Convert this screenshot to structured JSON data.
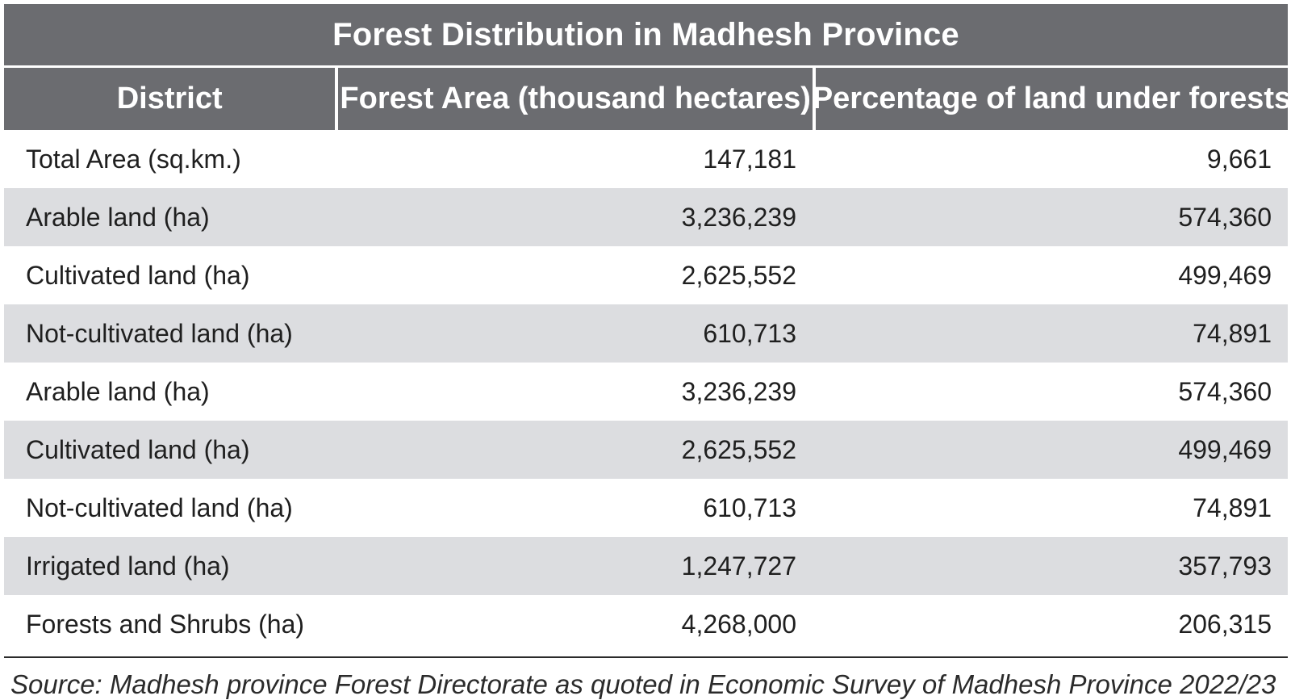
{
  "table": {
    "title": "Forest Distribution in Madhesh Province",
    "headers": [
      "District",
      "Forest Area (thousand hectares)",
      "Percentage of land under forests"
    ],
    "rows": [
      {
        "label": "Total Area (sq.km.)",
        "forest_area": "147,181",
        "percentage": "9,661"
      },
      {
        "label": "Arable land (ha)",
        "forest_area": "3,236,239",
        "percentage": "574,360"
      },
      {
        "label": "Cultivated land (ha)",
        "forest_area": "2,625,552",
        "percentage": "499,469"
      },
      {
        "label": "Not-cultivated land (ha)",
        "forest_area": "610,713",
        "percentage": "74,891"
      },
      {
        "label": "Arable land (ha)",
        "forest_area": "3,236,239",
        "percentage": "574,360"
      },
      {
        "label": "Cultivated land (ha)",
        "forest_area": "2,625,552",
        "percentage": "499,469"
      },
      {
        "label": "Not-cultivated land (ha)",
        "forest_area": "610,713",
        "percentage": "74,891"
      },
      {
        "label": "Irrigated land (ha)",
        "forest_area": "1,247,727",
        "percentage": "357,793"
      },
      {
        "label": "Forests and Shrubs (ha)",
        "forest_area": "4,268,000",
        "percentage": "206,315"
      }
    ],
    "source": "Source: Madhesh province Forest Directorate as quoted in Economic Survey of Madhesh Province 2022/23"
  },
  "colors": {
    "header_bg": "#6b6c70",
    "header_text": "#ffffff",
    "alt_row_bg": "#dcdde0",
    "body_text": "#1f1f1f"
  }
}
